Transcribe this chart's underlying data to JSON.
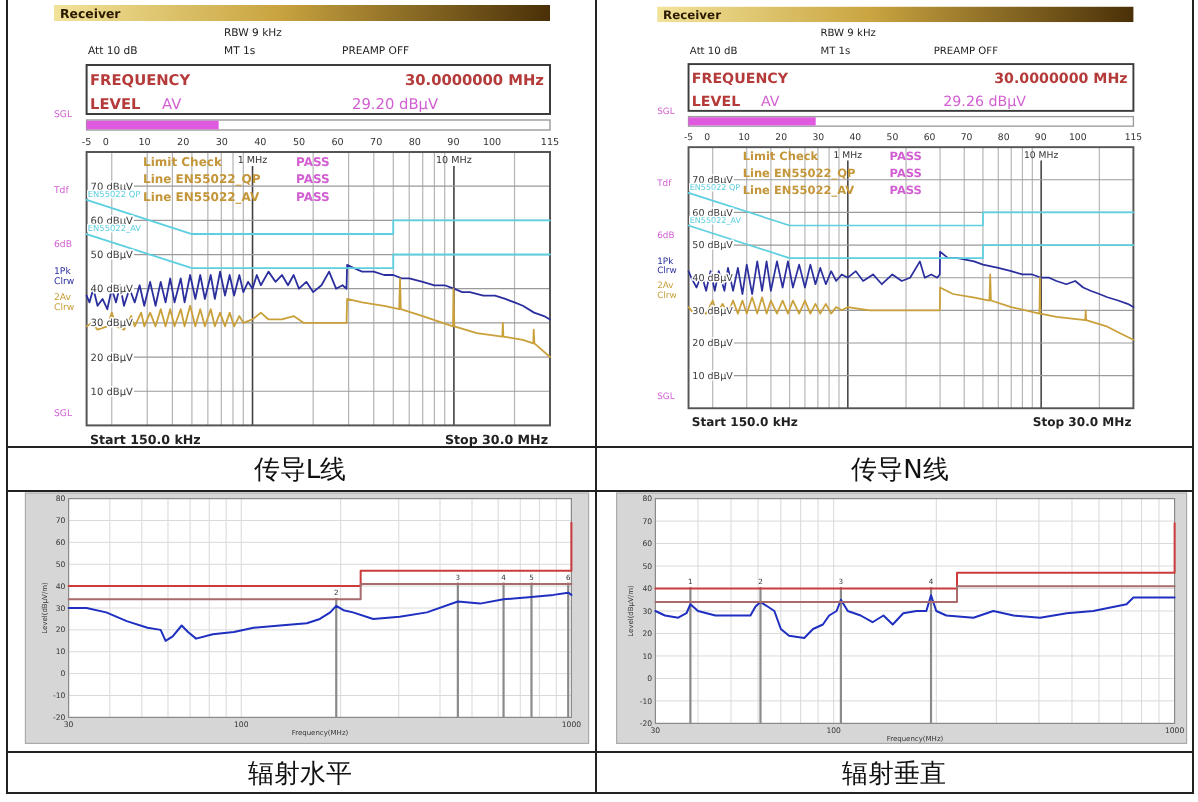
{
  "chart_data": [
    {
      "type": "bar",
      "orientation": "horizontal",
      "categories": [
        null
      ],
      "base": [
        -5
      ],
      "values": [
        34.2
      ],
      "color": "#e05ae0",
      "xlim": [
        -5,
        115
      ],
      "xticks": [
        -5,
        0,
        10,
        20,
        30,
        40,
        50,
        60,
        70,
        80,
        90,
        100,
        115
      ],
      "annotations": [
        "Receiver",
        "Att 10 dB",
        "RBW 9 kHz",
        "MT 1s",
        "PREAMP OFF",
        "FREQUENCY",
        "30.0000000 MHz",
        "LEVEL",
        "AV",
        "29.20 dBµV",
        "SGL"
      ]
    },
    {
      "type": "line",
      "title": "传导L线",
      "log": "x",
      "xlim": [
        0.15,
        30
      ],
      "xticks": [
        {
          "value": 0.2,
          "label": null
        },
        {
          "value": 0.3,
          "label": null
        },
        {
          "value": 0.4,
          "label": null
        },
        {
          "value": 0.5,
          "label": null
        },
        {
          "value": 0.6,
          "label": null
        },
        {
          "value": 0.7,
          "label": null
        },
        {
          "value": 0.8,
          "label": null
        },
        {
          "value": 0.9,
          "label": null
        },
        {
          "value": 1,
          "label": "1 MHz"
        },
        {
          "value": 2,
          "label": null
        },
        {
          "value": 3,
          "label": null
        },
        {
          "value": 4,
          "label": null
        },
        {
          "value": 5,
          "label": null
        },
        {
          "value": 6,
          "label": null
        },
        {
          "value": 7,
          "label": null
        },
        {
          "value": 8,
          "label": null
        },
        {
          "value": 9,
          "label": null
        },
        {
          "value": 10,
          "label": "10 MHz"
        },
        {
          "value": 20,
          "label": null
        }
      ],
      "ylim": [
        0,
        80
      ],
      "yticks": [
        {
          "value": 10,
          "label": "10 dBµV"
        },
        {
          "value": 20,
          "label": "20 dBµV"
        },
        {
          "value": 30,
          "label": "30 dBµV"
        },
        {
          "value": 40,
          "label": "40 dBµV"
        },
        {
          "value": 50,
          "label": "50 dBµV"
        },
        {
          "value": 60,
          "label": "60 dBµV"
        },
        {
          "value": 70,
          "label": "70 dBµV"
        }
      ],
      "grid": true,
      "legend": "left",
      "series": [
        {
          "name": "1Pk Clrw",
          "color": "#2b2f9e",
          "x": [
            0.15,
            0.155,
            0.162,
            0.17,
            0.18,
            0.19,
            0.2,
            0.21,
            0.22,
            0.23,
            0.245,
            0.26,
            0.275,
            0.29,
            0.31,
            0.33,
            0.35,
            0.37,
            0.39,
            0.41,
            0.44,
            0.46,
            0.49,
            0.52,
            0.55,
            0.58,
            0.62,
            0.65,
            0.69,
            0.73,
            0.77,
            0.81,
            0.86,
            0.9,
            0.95,
            1.0,
            1.05,
            1.1,
            1.2,
            1.3,
            1.4,
            1.5,
            1.6,
            1.7,
            1.85,
            2.0,
            2.2,
            2.4,
            2.6,
            2.8,
            2.93,
            2.95,
            3.2,
            3.5,
            4,
            4.5,
            5,
            5.5,
            6,
            7,
            8,
            9,
            10,
            11,
            12,
            14,
            16,
            18,
            20,
            22,
            25,
            28,
            30
          ],
          "values": [
            38,
            36,
            40,
            35,
            37,
            34,
            40,
            36,
            41,
            35,
            40,
            36,
            41,
            35,
            42,
            35,
            42,
            36,
            43,
            36,
            43,
            36,
            44,
            37,
            44,
            37,
            44,
            37,
            45,
            38,
            44,
            38,
            44,
            39,
            42,
            40,
            44,
            41,
            45,
            42,
            44,
            41,
            44,
            40,
            42,
            39,
            41,
            45,
            40,
            41,
            40,
            47,
            46,
            45,
            45,
            44,
            44,
            43,
            43,
            42,
            41,
            41,
            40,
            39,
            39,
            38,
            38,
            37,
            36,
            35,
            33,
            32,
            31
          ]
        },
        {
          "name": "2Av Clrw",
          "color": "#c9a03a",
          "x": [
            0.15,
            0.16,
            0.17,
            0.19,
            0.2,
            0.21,
            0.23,
            0.25,
            0.26,
            0.28,
            0.29,
            0.31,
            0.33,
            0.35,
            0.37,
            0.39,
            0.41,
            0.44,
            0.46,
            0.49,
            0.52,
            0.55,
            0.58,
            0.62,
            0.65,
            0.69,
            0.73,
            0.77,
            0.81,
            0.86,
            0.9,
            1.0,
            1.1,
            1.2,
            1.4,
            1.6,
            1.8,
            2.0,
            2.5,
            2.93,
            2.95,
            3.5,
            4.5,
            5.35,
            5.4,
            5.45,
            7,
            9.9,
            9.95,
            10.05,
            13,
            17.4,
            17.5,
            17.6,
            22,
            24.8,
            24.9,
            25.1,
            30
          ],
          "values": [
            29,
            30,
            28,
            29,
            33,
            29,
            28,
            32,
            29,
            33,
            29,
            33,
            29,
            34,
            29,
            34,
            29,
            34,
            29,
            35,
            29,
            34,
            29,
            34,
            29,
            33,
            29,
            33,
            29,
            32,
            30,
            31,
            33,
            31,
            31,
            32,
            30,
            30,
            30,
            30,
            37,
            36,
            35,
            34,
            43,
            34,
            32,
            29,
            40,
            29,
            27,
            26,
            30,
            26,
            25,
            24,
            28,
            24,
            20
          ]
        },
        {
          "name": "EN55022 QP",
          "color": "#5ccfe0",
          "x": [
            0.15,
            0.5,
            5,
            5,
            30
          ],
          "values": [
            66,
            56,
            56,
            60,
            60
          ]
        },
        {
          "name": "EN55022_AV",
          "color": "#5ccfe0",
          "x": [
            0.15,
            0.5,
            5,
            5,
            30
          ],
          "values": [
            56,
            46,
            46,
            50,
            50
          ]
        }
      ],
      "annotations": [
        "Tdf",
        "6dB",
        "SGL",
        "Limit Check",
        "PASS",
        "Line EN55022_QP",
        "PASS",
        "Line EN55022_AV",
        "PASS",
        "Start 150.0 kHz",
        "Stop 30.0 MHz"
      ]
    },
    {
      "type": "bar",
      "orientation": "horizontal",
      "categories": [
        null
      ],
      "base": [
        -5
      ],
      "values": [
        34.3
      ],
      "color": "#e05ae0",
      "xlim": [
        -5,
        115
      ],
      "xticks": [
        -5,
        0,
        10,
        20,
        30,
        40,
        50,
        60,
        70,
        80,
        90,
        100,
        115
      ],
      "annotations": [
        "Receiver",
        "Att 10 dB",
        "RBW 9 kHz",
        "MT 1s",
        "PREAMP OFF",
        "FREQUENCY",
        "30.0000000 MHz",
        "LEVEL",
        "AV",
        "29.26 dBµV",
        "SGL"
      ]
    },
    {
      "type": "line",
      "title": "传导N线",
      "log": "x",
      "xlim": [
        0.15,
        30
      ],
      "xticks": [
        {
          "value": 0.2,
          "label": null
        },
        {
          "value": 0.3,
          "label": null
        },
        {
          "value": 0.4,
          "label": null
        },
        {
          "value": 0.5,
          "label": null
        },
        {
          "value": 0.6,
          "label": null
        },
        {
          "value": 0.7,
          "label": null
        },
        {
          "value": 0.8,
          "label": null
        },
        {
          "value": 0.9,
          "label": null
        },
        {
          "value": 1,
          "label": "1 MHz"
        },
        {
          "value": 2,
          "label": null
        },
        {
          "value": 3,
          "label": null
        },
        {
          "value": 4,
          "label": null
        },
        {
          "value": 5,
          "label": null
        },
        {
          "value": 6,
          "label": null
        },
        {
          "value": 7,
          "label": null
        },
        {
          "value": 8,
          "label": null
        },
        {
          "value": 9,
          "label": null
        },
        {
          "value": 10,
          "label": "10 MHz"
        },
        {
          "value": 20,
          "label": null
        }
      ],
      "ylim": [
        0,
        80
      ],
      "yticks": [
        {
          "value": 10,
          "label": "10 dBµV"
        },
        {
          "value": 20,
          "label": "20 dBµV"
        },
        {
          "value": 30,
          "label": "30 dBµV"
        },
        {
          "value": 40,
          "label": "40 dBµV"
        },
        {
          "value": 50,
          "label": "50 dBµV"
        },
        {
          "value": 60,
          "label": "60 dBµV"
        },
        {
          "value": 70,
          "label": "70 dBµV"
        }
      ],
      "grid": true,
      "legend": "left",
      "series": [
        {
          "name": "1Pk Clrw",
          "color": "#2b2f9e",
          "x": [
            0.15,
            0.155,
            0.165,
            0.175,
            0.185,
            0.195,
            0.205,
            0.215,
            0.23,
            0.24,
            0.255,
            0.27,
            0.285,
            0.3,
            0.32,
            0.34,
            0.36,
            0.38,
            0.4,
            0.43,
            0.46,
            0.49,
            0.52,
            0.56,
            0.6,
            0.64,
            0.68,
            0.72,
            0.77,
            0.82,
            0.87,
            0.93,
            1.0,
            1.1,
            1.2,
            1.35,
            1.5,
            1.7,
            1.9,
            2.1,
            2.36,
            2.5,
            2.7,
            2.9,
            2.99,
            3.0,
            3.3,
            3.7,
            4.5,
            5,
            6,
            7,
            8,
            9,
            10,
            11,
            12,
            13.5,
            15,
            16.5,
            18,
            20,
            22,
            25,
            28,
            30
          ],
          "values": [
            42,
            40,
            37,
            41,
            36,
            42,
            36,
            42,
            36,
            43,
            36,
            43,
            35,
            44,
            35,
            45,
            36,
            45,
            36,
            45,
            37,
            45,
            37,
            44,
            37,
            44,
            38,
            43,
            38,
            42,
            39,
            41,
            40,
            42,
            39,
            41,
            38,
            41,
            39,
            40,
            45,
            40,
            41,
            40,
            41,
            48,
            46,
            46,
            45,
            44,
            43,
            42,
            41,
            41,
            40,
            40,
            39,
            38,
            39,
            37,
            36,
            35,
            34,
            33,
            32,
            31
          ]
        },
        {
          "name": "2Av Clrw",
          "color": "#c9a03a",
          "x": [
            0.15,
            0.16,
            0.17,
            0.185,
            0.2,
            0.21,
            0.225,
            0.24,
            0.255,
            0.27,
            0.285,
            0.3,
            0.32,
            0.34,
            0.36,
            0.38,
            0.4,
            0.43,
            0.46,
            0.49,
            0.52,
            0.56,
            0.6,
            0.64,
            0.68,
            0.72,
            0.77,
            0.82,
            0.87,
            0.93,
            1.0,
            1.3,
            1.7,
            2.2,
            2.99,
            3.0,
            3.5,
            4.45,
            5.4,
            5.45,
            5.5,
            7,
            9.8,
            9.85,
            9.9,
            12,
            16.9,
            17,
            17.1,
            22,
            25.6,
            30
          ],
          "values": [
            31,
            29,
            30,
            29,
            33,
            29,
            32,
            29,
            33,
            29,
            33,
            29,
            34,
            29,
            34,
            29,
            33,
            29,
            33,
            29,
            33,
            29,
            33,
            29,
            32,
            29,
            32,
            29,
            31,
            30,
            31,
            30,
            30,
            30,
            30,
            37,
            35,
            34,
            33,
            41,
            33,
            31,
            29,
            40,
            29,
            28,
            27,
            30,
            27,
            25,
            23,
            21
          ]
        },
        {
          "name": "EN55022 QP",
          "color": "#5ccfe0",
          "x": [
            0.15,
            0.5,
            5,
            5,
            30
          ],
          "values": [
            66,
            56,
            56,
            60,
            60
          ]
        },
        {
          "name": "EN55022_AV",
          "color": "#5ccfe0",
          "x": [
            0.15,
            0.5,
            5,
            5,
            30
          ],
          "values": [
            56,
            46,
            46,
            50,
            50
          ]
        }
      ],
      "annotations": [
        "Tdf",
        "6dB",
        "SGL",
        "Limit Check",
        "PASS",
        "Line EN55022_QP",
        "PASS",
        "Line EN55022_AV",
        "PASS",
        "Start 150.0 kHz",
        "Stop 30.0 MHz"
      ]
    },
    {
      "type": "line",
      "title": "辐射水平",
      "xlabel": "Frequency(MHz)",
      "ylabel": "Level(dBµV/m)",
      "log": "x",
      "xlim": [
        30,
        1000
      ],
      "xticks": [
        30,
        {
          "value": 40,
          "label": null
        },
        {
          "value": 50,
          "label": null
        },
        {
          "value": 60,
          "label": null
        },
        {
          "value": 70,
          "label": null
        },
        {
          "value": 80,
          "label": null
        },
        {
          "value": 90,
          "label": null
        },
        100,
        {
          "value": 200,
          "label": null
        },
        {
          "value": 300,
          "label": null
        },
        {
          "value": 400,
          "label": null
        },
        {
          "value": 500,
          "label": null
        },
        {
          "value": 600,
          "label": null
        },
        {
          "value": 700,
          "label": null
        },
        {
          "value": 800,
          "label": null
        },
        {
          "value": 900,
          "label": null
        },
        1000
      ],
      "ylim": [
        -20,
        80
      ],
      "yticks": [
        -20,
        -10,
        0,
        10,
        20,
        30,
        40,
        50,
        60,
        70,
        80
      ],
      "grid": true,
      "series": [
        {
          "color": "#1f2fc0",
          "x": [
            30,
            34,
            39,
            45,
            52,
            57,
            59,
            62,
            66,
            69,
            73,
            82,
            95,
            109,
            131,
            158,
            173,
            186,
            194,
            204,
            218,
            251,
            302,
            365,
            453,
            529,
            623,
            757,
            882,
            978,
            1000
          ],
          "values": [
            30,
            30,
            28,
            24,
            21,
            20,
            15,
            17,
            22,
            19,
            16,
            18,
            19,
            21,
            22,
            23,
            25,
            28,
            31,
            29,
            28,
            25,
            26,
            28,
            33,
            32,
            34,
            35,
            36,
            37,
            36
          ]
        },
        {
          "color": "#cc3b3b",
          "x": [
            30,
            230,
            230,
            1000,
            1000
          ],
          "values": [
            40,
            40,
            47,
            47,
            69
          ]
        },
        {
          "color": "#a86a6a",
          "x": [
            30,
            230,
            230,
            1000
          ],
          "values": [
            34,
            34,
            41,
            41
          ]
        }
      ],
      "ref_lines": [
        {
          "axis": "x",
          "value": 194
        },
        {
          "axis": "x",
          "value": 453
        },
        {
          "axis": "x",
          "value": 623
        },
        {
          "axis": "x",
          "value": 757
        },
        {
          "axis": "x",
          "value": 978
        }
      ],
      "annotations": [
        {
          "text": "2",
          "x": 194,
          "y": 37
        },
        {
          "text": "3",
          "x": 453,
          "y": 44
        },
        {
          "text": "4",
          "x": 623,
          "y": 44
        },
        {
          "text": "5",
          "x": 757,
          "y": 44
        },
        {
          "text": "6",
          "x": 978,
          "y": 44
        }
      ]
    },
    {
      "type": "line",
      "title": "辐射垂直",
      "xlabel": "Frequency(MHz)",
      "ylabel": "Level(dBµV/m)",
      "log": "x",
      "xlim": [
        30,
        1000
      ],
      "xticks": [
        30,
        {
          "value": 40,
          "label": null
        },
        {
          "value": 50,
          "label": null
        },
        {
          "value": 60,
          "label": null
        },
        {
          "value": 70,
          "label": null
        },
        {
          "value": 80,
          "label": null
        },
        {
          "value": 90,
          "label": null
        },
        100,
        {
          "value": 200,
          "label": null
        },
        {
          "value": 300,
          "label": null
        },
        {
          "value": 400,
          "label": null
        },
        {
          "value": 500,
          "label": null
        },
        {
          "value": 600,
          "label": null
        },
        {
          "value": 700,
          "label": null
        },
        {
          "value": 800,
          "label": null
        },
        {
          "value": 900,
          "label": null
        },
        1000
      ],
      "ylim": [
        -20,
        80
      ],
      "yticks": [
        -20,
        -10,
        0,
        10,
        20,
        30,
        40,
        50,
        60,
        70,
        80
      ],
      "grid": true,
      "series": [
        {
          "color": "#1f2fc0",
          "x": [
            30,
            32,
            35,
            37,
            38,
            40,
            45,
            51,
            57,
            59,
            61,
            64,
            67,
            70,
            74,
            82,
            87,
            93,
            97,
            102,
            105,
            110,
            120,
            130,
            140,
            149,
            160,
            175,
            187,
            193,
            200,
            214,
            257,
            294,
            337,
            403,
            483,
            577,
            723,
            757,
            866,
            991,
            1000
          ],
          "values": [
            30,
            28,
            27,
            29,
            33,
            30,
            28,
            28,
            28,
            32,
            34,
            32,
            30,
            22,
            19,
            18,
            22,
            24,
            28,
            30,
            35,
            30,
            28,
            25,
            28,
            24,
            29,
            30,
            30,
            37,
            30,
            28,
            27,
            30,
            28,
            27,
            29,
            30,
            33,
            36,
            36,
            36,
            36
          ]
        },
        {
          "color": "#cc3b3b",
          "x": [
            30,
            230,
            230,
            1000,
            1000
          ],
          "values": [
            40,
            40,
            47,
            47,
            69
          ]
        },
        {
          "color": "#a86a6a",
          "x": [
            30,
            230,
            230,
            1000
          ],
          "values": [
            34,
            34,
            41,
            41
          ]
        }
      ],
      "ref_lines": [
        {
          "axis": "x",
          "value": 38
        },
        {
          "axis": "x",
          "value": 61
        },
        {
          "axis": "x",
          "value": 105
        },
        {
          "axis": "x",
          "value": 193
        }
      ],
      "annotations": [
        {
          "text": "1",
          "x": 38,
          "y": 43
        },
        {
          "text": "2",
          "x": 61,
          "y": 43
        },
        {
          "text": "3",
          "x": 105,
          "y": 43
        },
        {
          "text": "4",
          "x": 193,
          "y": 43
        }
      ]
    }
  ]
}
